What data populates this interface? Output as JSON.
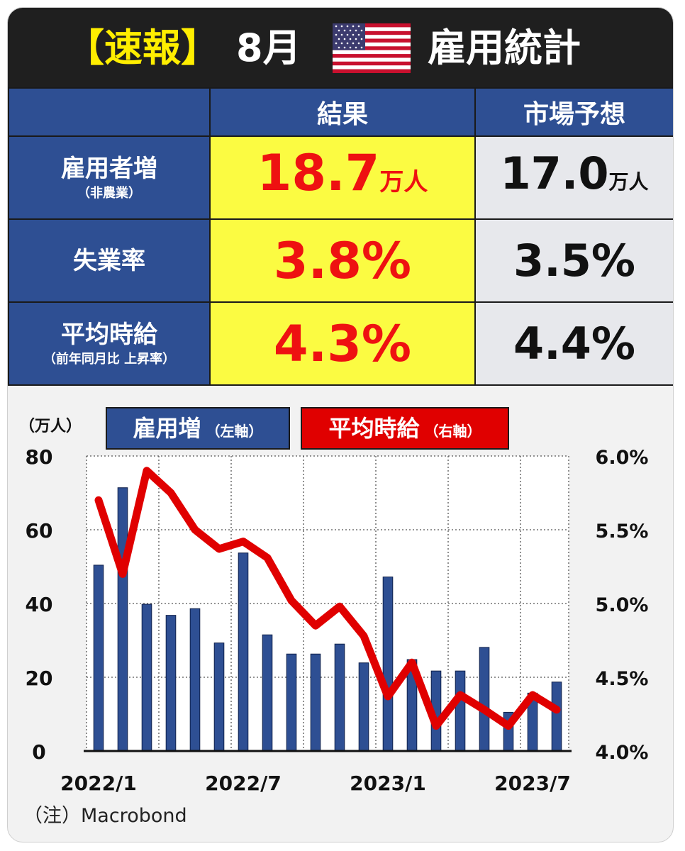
{
  "header": {
    "bracket_title": "【速報】",
    "month": "8月",
    "title": "雇用統計",
    "flag_icon": "us-flag-icon"
  },
  "table": {
    "col_result": "結果",
    "col_forecast": "市場予想",
    "rows": [
      {
        "label": "雇用者増",
        "sublabel": "（非農業）",
        "result": "18.7",
        "result_unit": "万人",
        "forecast": "17.0",
        "forecast_unit": "万人"
      },
      {
        "label": "失業率",
        "sublabel": "",
        "result": "3.8%",
        "result_unit": "",
        "forecast": "3.5%",
        "forecast_unit": ""
      },
      {
        "label": "平均時給",
        "sublabel": "（前年同月比 上昇率）",
        "result": "4.3%",
        "result_unit": "",
        "forecast": "4.4%",
        "forecast_unit": ""
      }
    ]
  },
  "colors": {
    "header_bg": "#1f1f1f",
    "title_yellow": "#ffee00",
    "cell_blue": "#2e4f93",
    "result_yellow": "#fbfb42",
    "result_red": "#ee1111",
    "forecast_gray": "#e7e8ec",
    "bar_blue": "#2e4f93",
    "line_red": "#e00000"
  },
  "chart_data": {
    "type": "bar",
    "y_unit_label": "（万人）",
    "legend": [
      {
        "name": "雇用増",
        "axis_note": "（左軸）",
        "color": "#2e4f93"
      },
      {
        "name": "平均時給",
        "axis_note": "（右軸）",
        "color": "#e00000"
      }
    ],
    "categories": [
      "2022/1",
      "2022/2",
      "2022/3",
      "2022/4",
      "2022/5",
      "2022/6",
      "2022/7",
      "2022/8",
      "2022/9",
      "2022/10",
      "2022/11",
      "2022/12",
      "2023/1",
      "2023/2",
      "2023/3",
      "2023/4",
      "2023/5",
      "2023/6",
      "2023/7",
      "2023/8"
    ],
    "x_tick_labels": [
      "2022/1",
      "2022/7",
      "2023/1",
      "2023/7"
    ],
    "series": [
      {
        "name": "雇用増",
        "axis": "left",
        "type": "bar",
        "values": [
          50.4,
          71.4,
          39.8,
          36.8,
          38.6,
          29.3,
          53.7,
          31.5,
          26.3,
          26.3,
          29.0,
          23.9,
          47.2,
          24.8,
          21.7,
          21.7,
          28.1,
          10.5,
          15.7,
          18.7
        ]
      },
      {
        "name": "平均時給",
        "axis": "right",
        "type": "line",
        "values": [
          5.7,
          5.2,
          5.9,
          5.75,
          5.5,
          5.37,
          5.42,
          5.31,
          5.02,
          4.85,
          4.98,
          4.78,
          4.37,
          4.6,
          4.17,
          4.38,
          4.28,
          4.17,
          4.38,
          4.28
        ]
      }
    ],
    "y_left": {
      "min": 0,
      "max": 80,
      "ticks": [
        0,
        20,
        40,
        60,
        80
      ]
    },
    "y_right": {
      "min": 4.0,
      "max": 6.0,
      "ticks": [
        "4.0%",
        "4.5%",
        "5.0%",
        "5.5%",
        "6.0%"
      ]
    },
    "grid": true,
    "note": "（注）Macrobond"
  }
}
